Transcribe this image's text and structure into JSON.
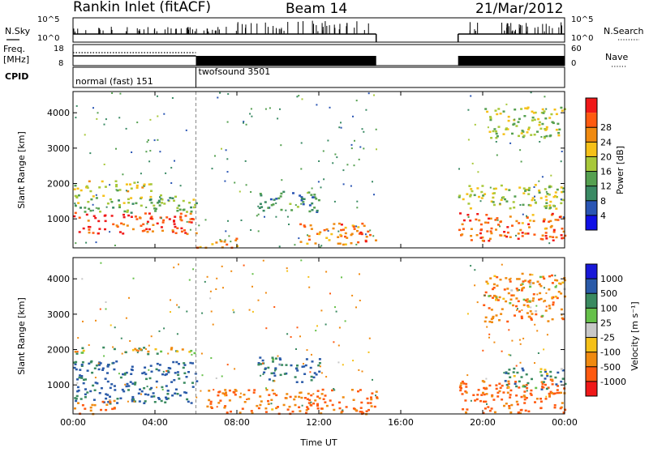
{
  "header": {
    "station": "Rankin Inlet (fitACF)",
    "beam": "Beam 14",
    "date": "21/Mar/2012"
  },
  "top_panels": {
    "nsky_label": "N.Sky",
    "nsky_ticks": [
      "10^5",
      "10^0"
    ],
    "nsearch_label": "N.Search",
    "nsearch_ticks": [
      "10^5",
      "10^0"
    ],
    "freq_label_1": "Freq.",
    "freq_label_2": "[MHz]",
    "freq_ticks": [
      "18",
      "8"
    ],
    "nave_label": "Nave",
    "nave_ticks": [
      "60",
      "0"
    ],
    "cpid_label": "CPID",
    "cpid_modes": [
      {
        "label": "normal (fast) 151",
        "start": 0,
        "end": 6
      },
      {
        "label": "twofsound 3501",
        "start": 6,
        "end": 24
      }
    ]
  },
  "chart_data": [
    {
      "type": "heatmap",
      "name": "power",
      "xlabel": "Time UT",
      "ylabel": "Slant Range [km]",
      "xlim": [
        0,
        24
      ],
      "ylim": [
        180,
        4600
      ],
      "yticks": [
        1000,
        2000,
        3000,
        4000
      ],
      "xticks": [
        "00:00",
        "04:00",
        "08:00",
        "12:00",
        "16:00",
        "20:00",
        "00:00"
      ],
      "data_gaps": [
        [
          14.8,
          18.8
        ]
      ],
      "colorbar_label": "Power [dB]",
      "colorbar_ticks": [
        "4",
        "8",
        "12",
        "16",
        "20",
        "24",
        "28"
      ],
      "colorbar_colors": [
        "#1010e6",
        "#2a55b4",
        "#3a8a64",
        "#55a050",
        "#a8c83a",
        "#f5c018",
        "#f08a10",
        "#ff5a10",
        "#f01818"
      ],
      "regions": [
        {
          "t0": 0,
          "t1": 6,
          "r0": 600,
          "r1": 1200,
          "level": 28
        },
        {
          "t0": 0,
          "t1": 6,
          "r0": 1200,
          "r1": 1700,
          "level": 14
        },
        {
          "t0": 0,
          "t1": 4,
          "r0": 1800,
          "r1": 2100,
          "level": 18
        },
        {
          "t0": 6,
          "t1": 8,
          "r0": 200,
          "r1": 500,
          "level": 24
        },
        {
          "t0": 9,
          "t1": 12,
          "r0": 1200,
          "r1": 1800,
          "level": 10
        },
        {
          "t0": 11,
          "t1": 14.8,
          "r0": 300,
          "r1": 900,
          "level": 24
        },
        {
          "t0": 18.8,
          "t1": 24,
          "r0": 400,
          "r1": 1200,
          "level": 26
        },
        {
          "t0": 18.8,
          "t1": 24,
          "r0": 1300,
          "r1": 2000,
          "level": 16
        },
        {
          "t0": 20,
          "t1": 24,
          "r0": 3300,
          "r1": 4200,
          "level": 16
        }
      ]
    },
    {
      "type": "heatmap",
      "name": "velocity",
      "xlabel": "Time UT",
      "ylabel": "Slant Range [km]",
      "xlim": [
        0,
        24
      ],
      "ylim": [
        180,
        4600
      ],
      "yticks": [
        1000,
        2000,
        3000,
        4000
      ],
      "xticks": [
        "00:00",
        "04:00",
        "08:00",
        "12:00",
        "16:00",
        "20:00",
        "00:00"
      ],
      "data_gaps": [
        [
          14.8,
          18.8
        ]
      ],
      "colorbar_label": "Velocity [m s⁻¹]",
      "colorbar_ticks": [
        "1000",
        "500",
        "100",
        "25",
        "-25",
        "-100",
        "-500",
        "-1000"
      ],
      "colorbar_colors": [
        "#1818d8",
        "#2a5aa8",
        "#3a8a60",
        "#66c04a",
        "#c8c8c8",
        "#f5c018",
        "#f08a10",
        "#ff5a10",
        "#f01818"
      ],
      "regions": [
        {
          "t0": 0,
          "t1": 6,
          "r0": 500,
          "r1": 1700,
          "level": 400
        },
        {
          "t0": 0,
          "t1": 6,
          "r0": 1900,
          "r1": 2100,
          "level": 0
        },
        {
          "t0": 0,
          "t1": 2,
          "r0": 200,
          "r1": 600,
          "level": -300
        },
        {
          "t0": 6.5,
          "t1": 14.8,
          "r0": 200,
          "r1": 900,
          "level": -300
        },
        {
          "t0": 9,
          "t1": 12,
          "r0": 1100,
          "r1": 1800,
          "level": 300
        },
        {
          "t0": 18.8,
          "t1": 24,
          "r0": 200,
          "r1": 1200,
          "level": -400
        },
        {
          "t0": 21,
          "t1": 24,
          "r0": 900,
          "r1": 1500,
          "level": 200
        },
        {
          "t0": 20,
          "t1": 24,
          "r0": 2800,
          "r1": 4200,
          "level": -200
        }
      ]
    }
  ]
}
